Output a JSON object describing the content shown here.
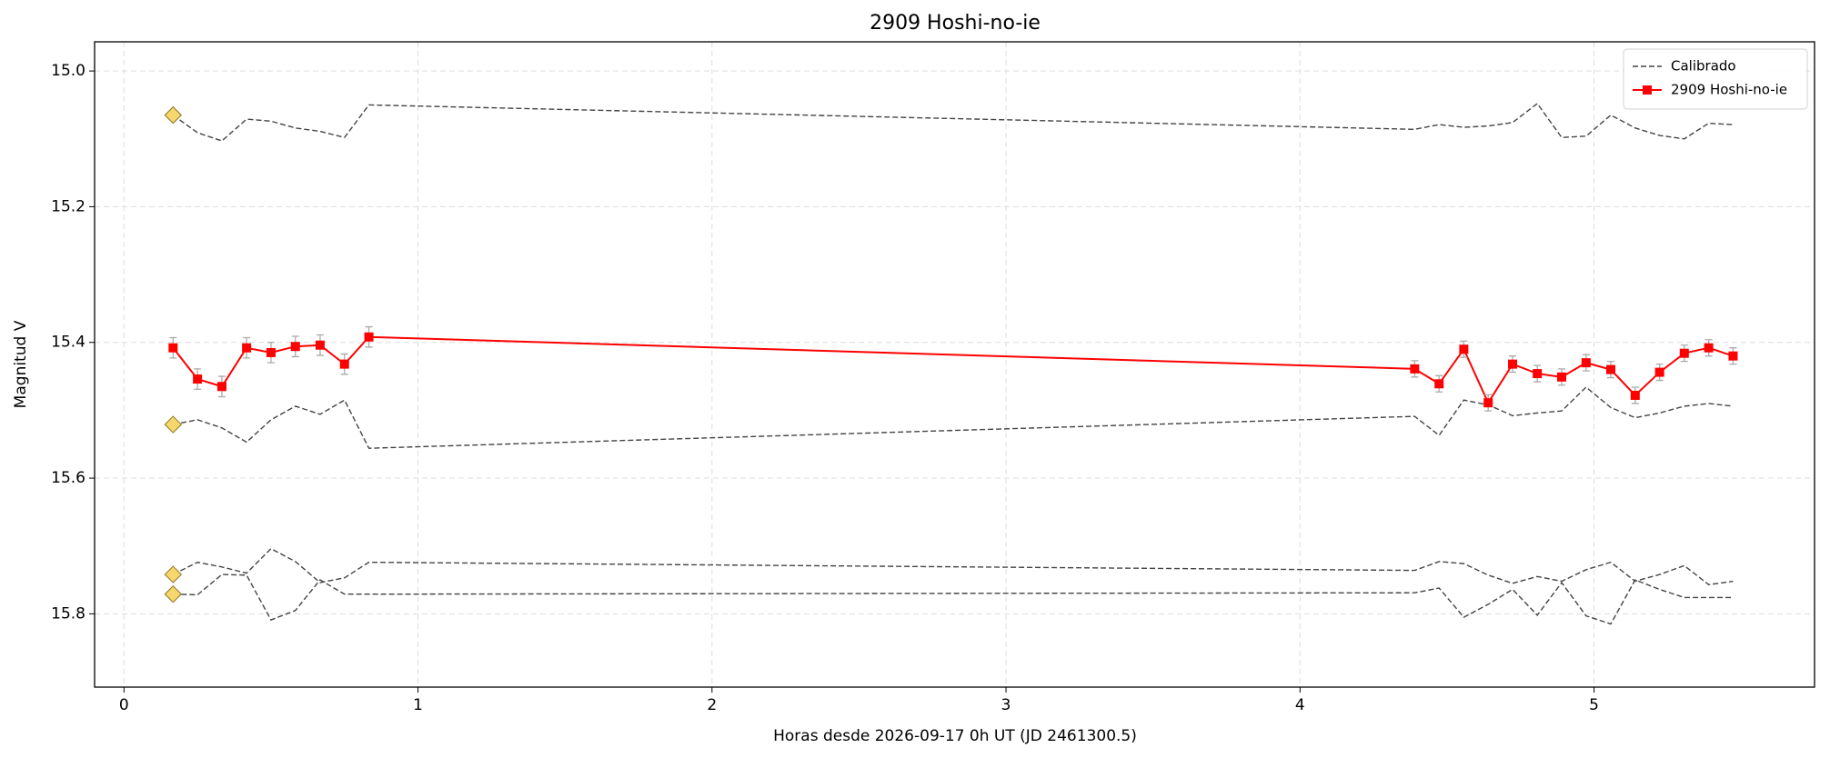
{
  "chart_data": {
    "type": "line",
    "title": "2909 Hoshi-no-ie",
    "x_label": "Horas desde 2026-09-17 0h UT (JD 2461300.5)",
    "y_label": "Magnitud V",
    "x": [
      0.167,
      0.25,
      0.333,
      0.417,
      0.5,
      0.583,
      0.667,
      0.75,
      0.833,
      4.39,
      4.473,
      4.557,
      4.64,
      4.723,
      4.807,
      4.89,
      4.973,
      5.057,
      5.14,
      5.223,
      5.307,
      5.39,
      5.473
    ],
    "series": [
      {
        "name": "Calibrado",
        "color": "#444444",
        "dashed": true,
        "first_marker_color": "#f5d76e",
        "values": [
          15.065,
          15.091,
          15.103,
          15.071,
          15.074,
          15.084,
          15.089,
          15.098,
          15.05,
          15.086,
          15.079,
          15.083,
          15.081,
          15.076,
          15.048,
          15.098,
          15.096,
          15.065,
          15.084,
          15.095,
          15.1,
          15.077,
          15.079
        ]
      },
      {
        "color": "#444444",
        "dashed": true,
        "first_marker_color": "#f5d76e",
        "values": [
          15.521,
          15.514,
          15.526,
          15.547,
          15.514,
          15.494,
          15.506,
          15.485,
          15.556,
          15.509,
          15.537,
          15.485,
          15.492,
          15.508,
          15.504,
          15.501,
          15.466,
          15.496,
          15.511,
          15.504,
          15.494,
          15.49,
          15.494
        ]
      },
      {
        "color": "#444444",
        "dashed": true,
        "first_marker_color": "#f5d76e",
        "values": [
          15.742,
          15.724,
          15.731,
          15.74,
          15.704,
          15.723,
          15.754,
          15.747,
          15.724,
          15.736,
          15.723,
          15.726,
          15.743,
          15.755,
          15.745,
          15.752,
          15.735,
          15.724,
          15.752,
          15.742,
          15.729,
          15.757,
          15.752
        ]
      },
      {
        "color": "#444444",
        "dashed": true,
        "first_marker_color": "#f5d76e",
        "values": [
          15.771,
          15.772,
          15.742,
          15.743,
          15.809,
          15.795,
          15.75,
          15.771,
          15.771,
          15.769,
          15.762,
          15.805,
          15.786,
          15.764,
          15.802,
          15.754,
          15.803,
          15.815,
          15.75,
          15.764,
          15.776,
          15.776,
          15.776
        ]
      },
      {
        "name": "2909 Hoshi-no-ie",
        "color": "#ff0000",
        "dashed": false,
        "marker": "square",
        "error_color": "#aaaaaa",
        "values": [
          15.408,
          15.454,
          15.465,
          15.408,
          15.415,
          15.406,
          15.404,
          15.432,
          15.392,
          15.439,
          15.461,
          15.41,
          15.489,
          15.432,
          15.446,
          15.451,
          15.43,
          15.44,
          15.478,
          15.444,
          15.416,
          15.408,
          15.42
        ],
        "errors": [
          0.015,
          0.015,
          0.015,
          0.015,
          0.015,
          0.015,
          0.015,
          0.015,
          0.015,
          0.012,
          0.012,
          0.012,
          0.012,
          0.012,
          0.012,
          0.012,
          0.012,
          0.012,
          0.012,
          0.012,
          0.012,
          0.012,
          0.012
        ]
      }
    ],
    "xlim": [
      -0.1,
      5.75
    ],
    "ylim": [
      14.957,
      15.908
    ],
    "y_inverted": true,
    "xticks": [
      0,
      1,
      2,
      3,
      4,
      5
    ],
    "yticks": [
      {
        "value": 15.0,
        "label": "15.0"
      },
      15.2,
      15.4,
      15.6,
      15.8
    ],
    "grid": true,
    "legend": "upper right"
  }
}
